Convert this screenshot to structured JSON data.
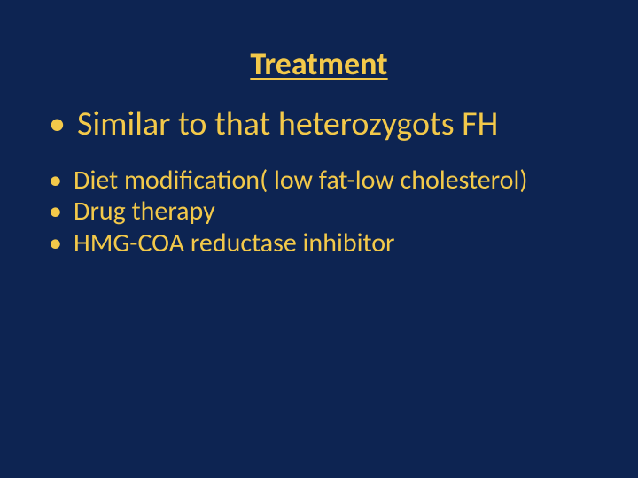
{
  "slide": {
    "background_color": "#0d2452",
    "title": {
      "text": "Treatment",
      "color": "#f3c94a",
      "fontsize": 36
    },
    "bullet_color": "#f3c94a",
    "text_color": "#f3c94a",
    "level1": {
      "fontsize": 38,
      "items": [
        {
          "text": "Similar to that heterozygots FH"
        }
      ]
    },
    "level2": {
      "fontsize": 30,
      "items": [
        {
          "text": "Diet modification( low fat-low cholesterol)"
        },
        {
          "text": "Drug therapy"
        },
        {
          "text": "HMG-COA reductase inhibitor"
        }
      ]
    }
  }
}
